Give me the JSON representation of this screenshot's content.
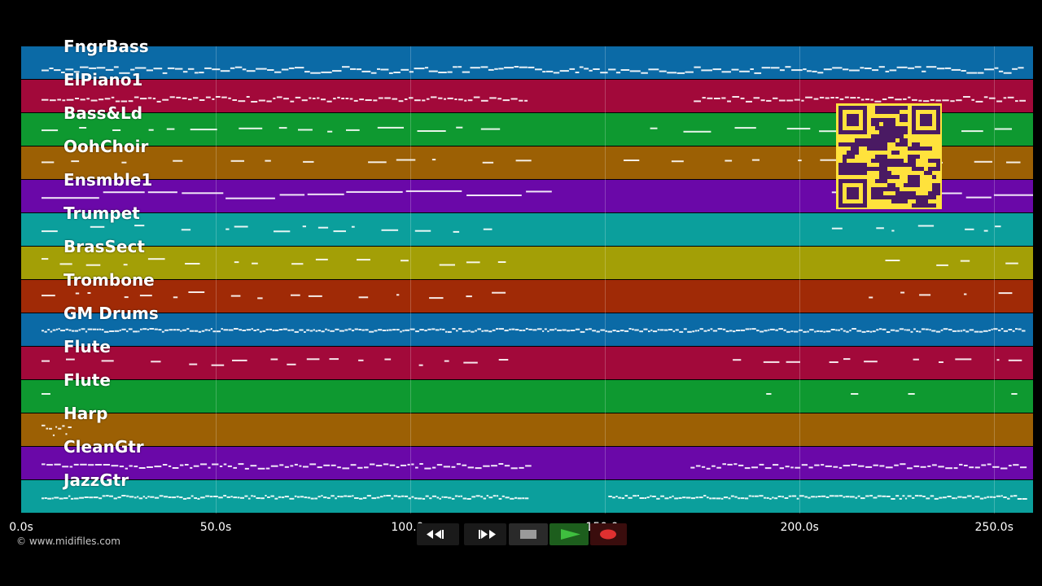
{
  "tracks": [
    {
      "name": "FngrBass",
      "color": "#0b6aa6",
      "pattern": "continuous",
      "gaps": []
    },
    {
      "name": "ElPiano1",
      "color": "#a2093a",
      "pattern": "chords",
      "gaps": [
        [
          0.5,
          0.66
        ]
      ]
    },
    {
      "name": "Bass&Ld",
      "color": "#0e9930",
      "pattern": "sparse-lines",
      "gaps": [
        [
          0.49,
          0.58
        ]
      ]
    },
    {
      "name": "OohChoir",
      "color": "#9c6004",
      "pattern": "dashes",
      "gaps": [
        [
          0.49,
          0.58
        ]
      ]
    },
    {
      "name": "Ensmble1",
      "color": "#6a08a8",
      "pattern": "sustained",
      "gaps": [
        [
          0.5,
          0.74
        ]
      ]
    },
    {
      "name": "Trumpet",
      "color": "#0b9f9c",
      "pattern": "phrases",
      "gaps": [
        [
          0.5,
          0.78
        ]
      ]
    },
    {
      "name": "BrasSect",
      "color": "#a39f06",
      "pattern": "phrases",
      "gaps": [
        [
          0.5,
          0.82
        ]
      ]
    },
    {
      "name": "Trombone",
      "color": "#a02a06",
      "pattern": "phrases",
      "gaps": [
        [
          0.5,
          0.82
        ]
      ]
    },
    {
      "name": "GM Drums",
      "color": "#0b6aa6",
      "pattern": "continuous-dense",
      "gaps": []
    },
    {
      "name": "Flute",
      "color": "#a2093a",
      "pattern": "phrases",
      "gaps": [
        [
          0.5,
          0.66
        ]
      ]
    },
    {
      "name": "Flute",
      "color": "#0e9930",
      "pattern": "rare",
      "gaps": [
        [
          0.06,
          0.68
        ]
      ]
    },
    {
      "name": "Harp",
      "color": "#9c6004",
      "pattern": "intro",
      "gaps": [
        [
          0.05,
          1.0
        ]
      ]
    },
    {
      "name": "CleanGtr",
      "color": "#6a08a8",
      "pattern": "chords",
      "gaps": [
        [
          0.5,
          0.66
        ]
      ]
    },
    {
      "name": "JazzGtr",
      "color": "#0b9f9c",
      "pattern": "continuous-dense",
      "gaps": [
        [
          0.5,
          0.58
        ]
      ]
    }
  ],
  "time_axis": {
    "min_seconds": 0,
    "max_seconds": 260,
    "ticks": [
      {
        "value": 0,
        "label": "0.0s"
      },
      {
        "value": 50,
        "label": "50.0s"
      },
      {
        "value": 100,
        "label": "100.0s"
      },
      {
        "value": 150,
        "label": "150.0s"
      },
      {
        "value": 200,
        "label": "200.0s"
      },
      {
        "value": 250,
        "label": "250.0s"
      }
    ]
  },
  "copyright": "© www.midifiles.com",
  "transport": {
    "buttons": [
      {
        "name": "rewind-button",
        "icon": "rewind-icon"
      },
      {
        "name": "fast-forward-button",
        "icon": "fast-forward-icon"
      },
      {
        "name": "stop-button",
        "icon": "stop-icon"
      },
      {
        "name": "play-button",
        "icon": "play-icon"
      },
      {
        "name": "record-button",
        "icon": "record-icon"
      }
    ]
  },
  "colors": {
    "background": "#000000",
    "qr_background": "#ffe23c",
    "qr_foreground": "#4a1a63",
    "play_green": "#3fbf3f",
    "record_red": "#e03030"
  },
  "qr_code": {
    "icon": "qr-code-icon"
  }
}
